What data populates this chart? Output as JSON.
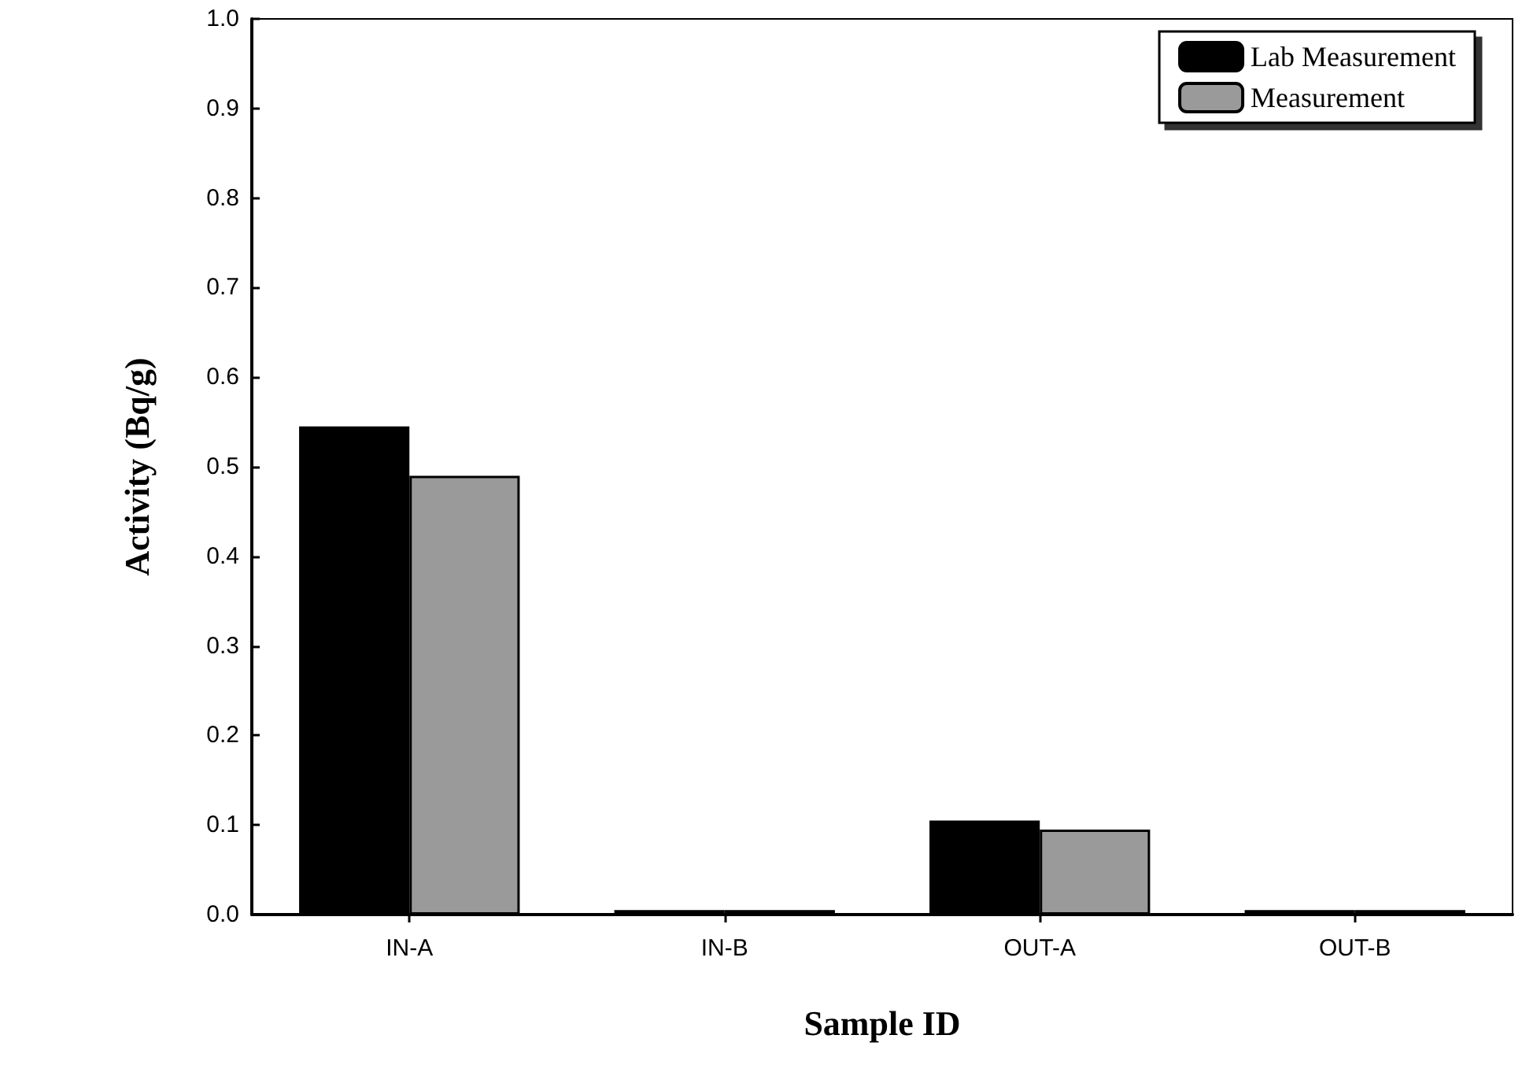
{
  "chart_data": {
    "type": "bar",
    "xlabel": "Sample ID",
    "ylabel": "Activity (Bq/g)",
    "categories": [
      "IN-A",
      "IN-B",
      "OUT-A",
      "OUT-B"
    ],
    "series": [
      {
        "name": "Lab Measurement",
        "color": "#000000",
        "values": [
          0.545,
          0.005,
          0.105,
          0.005
        ]
      },
      {
        "name": "Measurement",
        "color": "#9a9a9a",
        "values": [
          0.49,
          0.005,
          0.095,
          0.005
        ]
      }
    ],
    "ylim": [
      0,
      1
    ],
    "yticks": [
      {
        "value": 0,
        "label": "0.0"
      },
      0.1,
      0.2,
      0.3,
      0.4,
      0.5,
      0.6,
      0.7,
      0.8,
      0.9,
      {
        "value": 1,
        "label": "1.0"
      }
    ],
    "grid": false,
    "legend": "top right"
  }
}
